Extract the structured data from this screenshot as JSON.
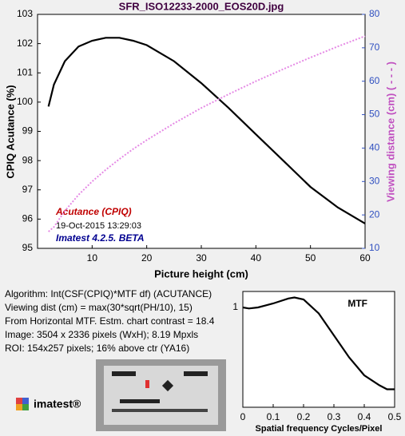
{
  "chart_data": [
    {
      "type": "line",
      "title": "SFR_ISO12233-2000_EOS20D.jpg",
      "xlabel": "Picture height (cm)",
      "ylabel": "CPIQ Acutance (%)",
      "y2label": "Viewing distance (cm) ( - - - )",
      "x": [
        2,
        3,
        5,
        7.5,
        10,
        12.5,
        15,
        17.5,
        20,
        25,
        30,
        35,
        40,
        45,
        50,
        55,
        60
      ],
      "series": [
        {
          "name": "Acutance (CPIQ)",
          "color": "#000000",
          "values": [
            99.85,
            100.6,
            101.4,
            101.9,
            102.1,
            102.2,
            102.2,
            102.1,
            101.95,
            101.4,
            100.65,
            99.8,
            98.9,
            98.0,
            97.1,
            96.4,
            95.85
          ]
        },
        {
          "color": "#e58ae5",
          "axis": "y2",
          "dashed": true,
          "values": [
            15,
            16.4,
            21.2,
            26.0,
            30,
            33.5,
            36.7,
            39.7,
            42.4,
            47.4,
            52.0,
            56.1,
            60,
            63.6,
            67.1,
            70.4,
            73.5
          ]
        }
      ],
      "annotations": [
        "19-Oct-2015 13:29:03",
        "Imatest 4.2.5. BETA"
      ],
      "xlim": [
        0,
        60
      ],
      "xticks": [
        10,
        20,
        30,
        40,
        50,
        60
      ],
      "ylim": [
        95,
        103
      ],
      "yticks": [
        95,
        96,
        97,
        98,
        99,
        100,
        101,
        102,
        103
      ],
      "y2lim": [
        10,
        80
      ],
      "y2ticks": [
        10,
        20,
        30,
        40,
        50,
        60,
        70,
        80
      ]
    },
    {
      "type": "line",
      "title": "MTF",
      "xlabel": "Spatial frequency Cycles/Pixel",
      "x": [
        0,
        0.02,
        0.05,
        0.1,
        0.15,
        0.17,
        0.2,
        0.25,
        0.3,
        0.35,
        0.4,
        0.45,
        0.475,
        0.5
      ],
      "series": [
        {
          "color": "#000000",
          "values": [
            1.0,
            0.99,
            1.0,
            1.04,
            1.09,
            1.1,
            1.08,
            0.94,
            0.72,
            0.5,
            0.32,
            0.22,
            0.18,
            0.18
          ]
        }
      ],
      "xlim": [
        0,
        0.5
      ],
      "xticks": [
        0,
        0.1,
        0.2,
        0.3,
        0.4,
        0.5
      ],
      "ylim": [
        0,
        1.16
      ],
      "yticks": [
        1
      ]
    }
  ],
  "info_lines": [
    "Algorithm:  Int(CSF(CPIQ)*MTF df)  (ACUTANCE)",
    "Viewing dist (cm) = max(30*sqrt(PH/10), 15)",
    "From Horizontal MTF.  Estm. chart contrast = 18.4",
    "Image: 3504 x 2336 pixels (WxH); 8.19 Mpxls",
    "ROI: 154x257 pixels;  16% above ctr  (YA16)"
  ],
  "logo": "imatest®"
}
